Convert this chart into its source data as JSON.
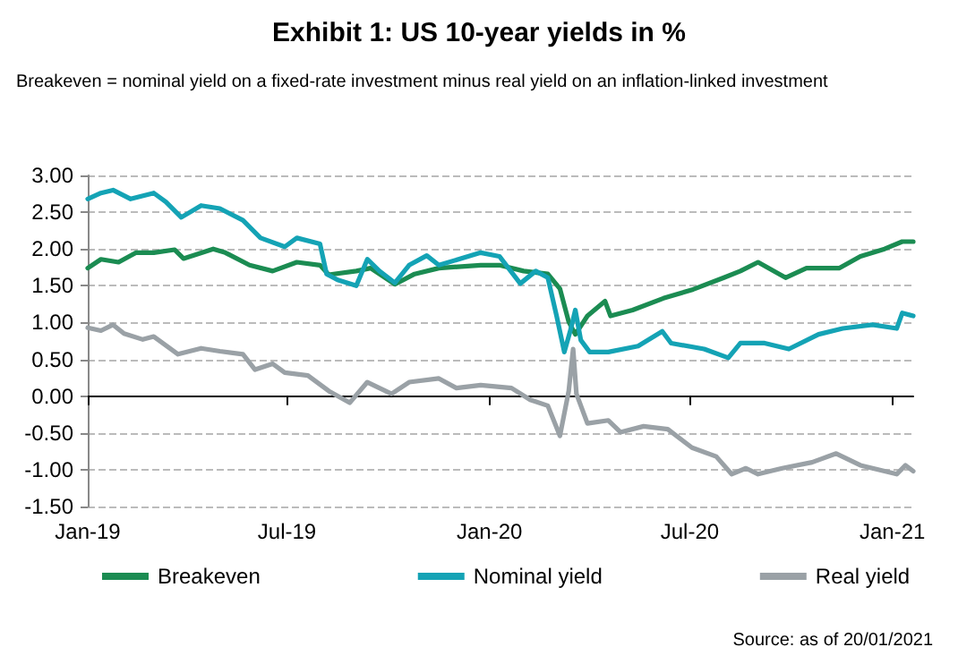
{
  "chart_data": {
    "type": "line",
    "title": "Exhibit 1: US 10-year yields in %",
    "subtitle": "Breakeven = nominal yield on a fixed-rate investment minus real yield on an inflation-linked investment",
    "annotations": [
      "Source: as of 20/01/2021"
    ],
    "series": [
      {
        "name": "Breakeven",
        "color": "#1b8c52",
        "x": [
          "2019-01-01",
          "2019-01-13",
          "2019-01-29",
          "2019-02-14",
          "2019-03-02",
          "2019-03-21",
          "2019-03-29",
          "2019-04-25",
          "2019-05-06",
          "2019-05-28",
          "2019-06-18",
          "2019-07-10",
          "2019-07-31",
          "2019-08-08",
          "2019-09-02",
          "2019-09-15",
          "2019-10-07",
          "2019-10-25",
          "2019-11-16",
          "2019-12-24",
          "2020-01-10",
          "2020-02-01",
          "2020-02-23",
          "2020-03-05",
          "2020-03-13",
          "2020-03-19",
          "2020-03-30",
          "2020-04-15",
          "2020-04-20",
          "2020-05-10",
          "2020-06-07",
          "2020-07-04",
          "2020-08-01",
          "2020-08-16",
          "2020-09-01",
          "2020-09-26",
          "2020-10-15",
          "2020-11-14",
          "2020-12-03",
          "2020-12-25",
          "2021-01-10",
          "2021-01-20"
        ],
        "values": [
          1.74,
          1.86,
          1.82,
          1.95,
          1.95,
          1.99,
          1.87,
          2.0,
          1.95,
          1.78,
          1.7,
          1.82,
          1.78,
          1.65,
          1.7,
          1.74,
          1.52,
          1.66,
          1.74,
          1.78,
          1.78,
          1.7,
          1.66,
          1.46,
          1.01,
          0.84,
          1.09,
          1.29,
          1.09,
          1.17,
          1.33,
          1.45,
          1.61,
          1.7,
          1.82,
          1.61,
          1.74,
          1.74,
          1.9,
          2.0,
          2.1,
          2.1
        ]
      },
      {
        "name": "Nominal yield",
        "color": "#14a3b5",
        "x": [
          "2019-01-01",
          "2019-01-13",
          "2019-01-24",
          "2019-02-09",
          "2019-03-02",
          "2019-03-13",
          "2019-03-27",
          "2019-04-14",
          "2019-05-01",
          "2019-05-22",
          "2019-06-07",
          "2019-06-29",
          "2019-07-10",
          "2019-07-31",
          "2019-08-06",
          "2019-08-16",
          "2019-09-02",
          "2019-09-12",
          "2019-09-23",
          "2019-10-07",
          "2019-10-20",
          "2019-11-05",
          "2019-11-16",
          "2019-12-24",
          "2020-01-10",
          "2020-01-29",
          "2020-02-12",
          "2020-02-23",
          "2020-03-02",
          "2020-03-09",
          "2020-03-15",
          "2020-03-19",
          "2020-03-24",
          "2020-04-01",
          "2020-04-18",
          "2020-05-15",
          "2020-06-06",
          "2020-06-14",
          "2020-07-14",
          "2020-08-05",
          "2020-08-16",
          "2020-09-07",
          "2020-09-29",
          "2020-10-26",
          "2020-11-17",
          "2020-12-14",
          "2021-01-05",
          "2021-01-10",
          "2021-01-20"
        ],
        "values": [
          2.68,
          2.76,
          2.8,
          2.68,
          2.76,
          2.64,
          2.43,
          2.59,
          2.55,
          2.39,
          2.15,
          2.03,
          2.15,
          2.07,
          1.66,
          1.58,
          1.5,
          1.86,
          1.7,
          1.54,
          1.78,
          1.91,
          1.78,
          1.95,
          1.9,
          1.53,
          1.7,
          1.61,
          1.09,
          0.6,
          0.92,
          1.17,
          0.76,
          0.6,
          0.6,
          0.68,
          0.88,
          0.72,
          0.64,
          0.52,
          0.72,
          0.72,
          0.64,
          0.84,
          0.92,
          0.97,
          0.92,
          1.13,
          1.09
        ]
      },
      {
        "name": "Real yield",
        "color": "#9aa1a6",
        "x": [
          "2019-01-01",
          "2019-01-13",
          "2019-01-24",
          "2019-02-03",
          "2019-02-20",
          "2019-03-02",
          "2019-03-24",
          "2019-04-14",
          "2019-05-01",
          "2019-05-22",
          "2019-06-02",
          "2019-06-18",
          "2019-06-29",
          "2019-07-20",
          "2019-08-08",
          "2019-08-27",
          "2019-09-12",
          "2019-10-04",
          "2019-10-20",
          "2019-11-16",
          "2019-12-02",
          "2019-12-24",
          "2020-01-21",
          "2020-02-07",
          "2020-02-23",
          "2020-03-05",
          "2020-03-13",
          "2020-03-17",
          "2020-03-20",
          "2020-03-30",
          "2020-04-18",
          "2020-04-29",
          "2020-05-20",
          "2020-06-11",
          "2020-07-03",
          "2020-07-25",
          "2020-08-08",
          "2020-08-21",
          "2020-09-01",
          "2020-09-23",
          "2020-10-20",
          "2020-11-11",
          "2020-12-03",
          "2021-01-05",
          "2021-01-13",
          "2021-01-20"
        ],
        "values": [
          0.93,
          0.89,
          0.97,
          0.85,
          0.77,
          0.81,
          0.57,
          0.65,
          0.61,
          0.57,
          0.36,
          0.44,
          0.32,
          0.28,
          0.07,
          -0.09,
          0.19,
          0.03,
          0.19,
          0.24,
          0.11,
          0.15,
          0.11,
          -0.05,
          -0.13,
          -0.54,
          0.07,
          0.64,
          0.03,
          -0.37,
          -0.33,
          -0.49,
          -0.41,
          -0.45,
          -0.7,
          -0.82,
          -1.06,
          -0.98,
          -1.06,
          -0.98,
          -0.9,
          -0.78,
          -0.94,
          -1.06,
          -0.94,
          -1.02
        ]
      }
    ],
    "xlim": [
      "2019-01-01",
      "2021-01-20"
    ],
    "xticks": [
      {
        "value": "2019-01-01",
        "label": "Jan-19"
      },
      {
        "value": "2019-07-01",
        "label": "Jul-19"
      },
      {
        "value": "2020-01-01",
        "label": "Jan-20"
      },
      {
        "value": "2020-07-01",
        "label": "Jul-20"
      },
      {
        "value": "2021-01-01",
        "label": "Jan-21"
      }
    ],
    "ylim": [
      -1.5,
      3
    ],
    "yticks": [
      {
        "value": -1.5,
        "label": "-1.50"
      },
      {
        "value": -1,
        "label": "-1.00"
      },
      {
        "value": -0.5,
        "label": "-0.50"
      },
      {
        "value": 0,
        "label": "0.00"
      },
      {
        "value": 0.5,
        "label": "0.50"
      },
      {
        "value": 1,
        "label": "1.00"
      },
      {
        "value": 1.5,
        "label": "1.50"
      },
      {
        "value": 2,
        "label": "2.00"
      },
      {
        "value": 2.5,
        "label": "2.50"
      },
      {
        "value": 3,
        "label": "3.00"
      }
    ],
    "grid": "y",
    "legend": "bottom",
    "marker": "none",
    "line_style": "solid"
  }
}
